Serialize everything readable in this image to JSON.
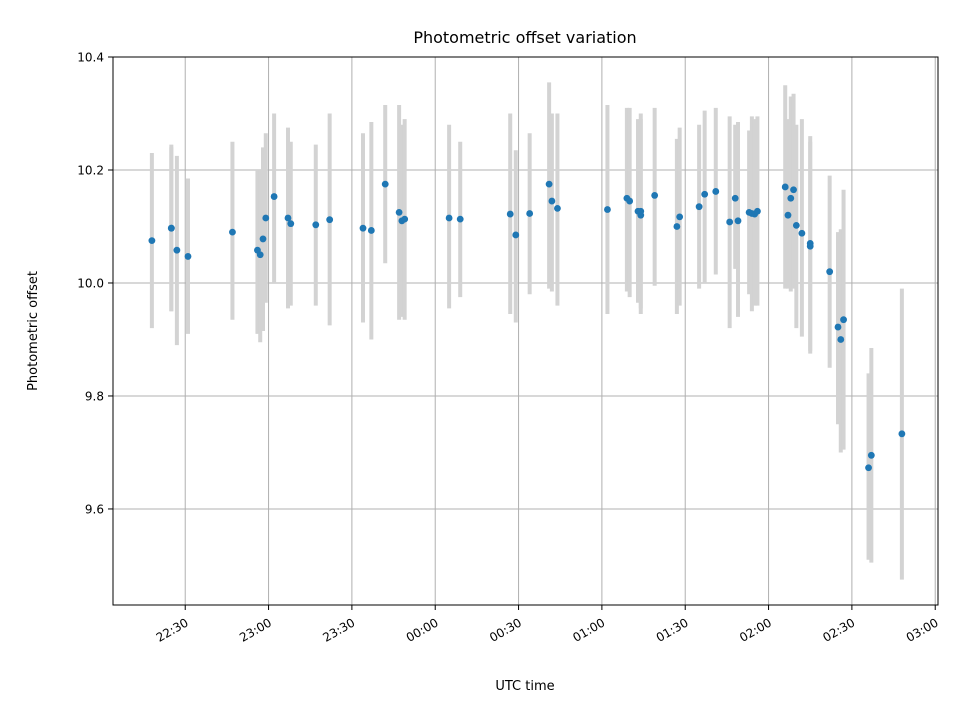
{
  "chart_data": {
    "type": "scatter",
    "title": "Photometric offset variation",
    "xlabel": "UTC time",
    "ylabel": "Photometric offset",
    "x_ticks": [
      "22:30",
      "23:00",
      "23:30",
      "00:00",
      "00:30",
      "01:00",
      "01:30",
      "02:00",
      "02:30",
      "03:00"
    ],
    "y_ticks": [
      "9.6",
      "9.8",
      "10.0",
      "10.2",
      "10.4"
    ],
    "xlim": [
      "22:04",
      "03:01"
    ],
    "ylim": [
      9.43,
      10.4
    ],
    "grid": true,
    "colors": {
      "point": "#1f77b4",
      "error_bar": "#d3d3d3",
      "grid": "#b0b0b0"
    },
    "series": [
      {
        "points": [
          {
            "x": "22:18",
            "y": 10.075,
            "ylo": 9.92,
            "yhi": 10.23
          },
          {
            "x": "22:25",
            "y": 10.097,
            "ylo": 9.95,
            "yhi": 10.245
          },
          {
            "x": "22:25",
            "y": 10.097,
            "ylo": 9.95,
            "yhi": 10.24
          },
          {
            "x": "22:27",
            "y": 10.058,
            "ylo": 9.89,
            "yhi": 10.225
          },
          {
            "x": "22:31",
            "y": 10.047,
            "ylo": 9.91,
            "yhi": 10.185
          },
          {
            "x": "22:47",
            "y": 10.09,
            "ylo": 9.935,
            "yhi": 10.25
          },
          {
            "x": "22:56",
            "y": 10.058,
            "ylo": 9.91,
            "yhi": 10.2
          },
          {
            "x": "22:57",
            "y": 10.05,
            "ylo": 9.895,
            "yhi": 10.2
          },
          {
            "x": "22:58",
            "y": 10.078,
            "ylo": 9.915,
            "yhi": 10.24
          },
          {
            "x": "22:59",
            "y": 10.115,
            "ylo": 9.965,
            "yhi": 10.265
          },
          {
            "x": "23:02",
            "y": 10.153,
            "ylo": 10.0,
            "yhi": 10.3
          },
          {
            "x": "23:07",
            "y": 10.115,
            "ylo": 9.955,
            "yhi": 10.275
          },
          {
            "x": "23:08",
            "y": 10.105,
            "ylo": 9.96,
            "yhi": 10.25
          },
          {
            "x": "23:17",
            "y": 10.103,
            "ylo": 9.96,
            "yhi": 10.245
          },
          {
            "x": "23:22",
            "y": 10.112,
            "ylo": 9.925,
            "yhi": 10.3
          },
          {
            "x": "23:34",
            "y": 10.097,
            "ylo": 9.93,
            "yhi": 10.265
          },
          {
            "x": "23:37",
            "y": 10.093,
            "ylo": 9.9,
            "yhi": 10.285
          },
          {
            "x": "23:42",
            "y": 10.175,
            "ylo": 10.035,
            "yhi": 10.315
          },
          {
            "x": "23:47",
            "y": 10.125,
            "ylo": 9.935,
            "yhi": 10.315
          },
          {
            "x": "23:48",
            "y": 10.11,
            "ylo": 9.94,
            "yhi": 10.28
          },
          {
            "x": "23:49",
            "y": 10.113,
            "ylo": 9.935,
            "yhi": 10.29
          },
          {
            "x": "00:05",
            "y": 10.115,
            "ylo": 9.955,
            "yhi": 10.28
          },
          {
            "x": "00:09",
            "y": 10.113,
            "ylo": 9.975,
            "yhi": 10.25
          },
          {
            "x": "00:27",
            "y": 10.122,
            "ylo": 9.945,
            "yhi": 10.3
          },
          {
            "x": "00:29",
            "y": 10.085,
            "ylo": 9.93,
            "yhi": 10.235
          },
          {
            "x": "00:34",
            "y": 10.123,
            "ylo": 9.98,
            "yhi": 10.265
          },
          {
            "x": "00:41",
            "y": 10.175,
            "ylo": 9.99,
            "yhi": 10.355
          },
          {
            "x": "00:42",
            "y": 10.145,
            "ylo": 9.985,
            "yhi": 10.3
          },
          {
            "x": "00:44",
            "y": 10.132,
            "ylo": 9.96,
            "yhi": 10.3
          },
          {
            "x": "01:02",
            "y": 10.13,
            "ylo": 9.945,
            "yhi": 10.315
          },
          {
            "x": "01:09",
            "y": 10.15,
            "ylo": 9.985,
            "yhi": 10.31
          },
          {
            "x": "01:10",
            "y": 10.145,
            "ylo": 9.975,
            "yhi": 10.31
          },
          {
            "x": "01:13",
            "y": 10.127,
            "ylo": 9.965,
            "yhi": 10.29
          },
          {
            "x": "01:14",
            "y": 10.12,
            "ylo": 9.945,
            "yhi": 10.29
          },
          {
            "x": "01:14",
            "y": 10.127,
            "ylo": 9.955,
            "yhi": 10.3
          },
          {
            "x": "01:19",
            "y": 10.155,
            "ylo": 9.995,
            "yhi": 10.31
          },
          {
            "x": "01:27",
            "y": 10.1,
            "ylo": 9.945,
            "yhi": 10.255
          },
          {
            "x": "01:28",
            "y": 10.117,
            "ylo": 9.96,
            "yhi": 10.275
          },
          {
            "x": "01:35",
            "y": 10.135,
            "ylo": 9.99,
            "yhi": 10.28
          },
          {
            "x": "01:37",
            "y": 10.157,
            "ylo": 10.0,
            "yhi": 10.305
          },
          {
            "x": "01:41",
            "y": 10.162,
            "ylo": 10.015,
            "yhi": 10.31
          },
          {
            "x": "01:46",
            "y": 10.108,
            "ylo": 9.92,
            "yhi": 10.295
          },
          {
            "x": "01:48",
            "y": 10.15,
            "ylo": 10.025,
            "yhi": 10.28
          },
          {
            "x": "01:49",
            "y": 10.11,
            "ylo": 9.94,
            "yhi": 10.285
          },
          {
            "x": "01:53",
            "y": 10.125,
            "ylo": 9.98,
            "yhi": 10.27
          },
          {
            "x": "01:54",
            "y": 10.123,
            "ylo": 9.95,
            "yhi": 10.295
          },
          {
            "x": "01:55",
            "y": 10.122,
            "ylo": 9.96,
            "yhi": 10.29
          },
          {
            "x": "01:56",
            "y": 10.127,
            "ylo": 9.96,
            "yhi": 10.295
          },
          {
            "x": "02:06",
            "y": 10.17,
            "ylo": 9.99,
            "yhi": 10.35
          },
          {
            "x": "02:07",
            "y": 10.12,
            "ylo": 9.99,
            "yhi": 10.29
          },
          {
            "x": "02:08",
            "y": 10.15,
            "ylo": 9.985,
            "yhi": 10.33
          },
          {
            "x": "02:09",
            "y": 10.165,
            "ylo": 9.99,
            "yhi": 10.335
          },
          {
            "x": "02:10",
            "y": 10.102,
            "ylo": 9.92,
            "yhi": 10.28
          },
          {
            "x": "02:12",
            "y": 10.088,
            "ylo": 9.905,
            "yhi": 10.29
          },
          {
            "x": "02:15",
            "y": 10.07,
            "ylo": 9.875,
            "yhi": 10.26
          },
          {
            "x": "02:15",
            "y": 10.065,
            "ylo": 9.88,
            "yhi": 10.25
          },
          {
            "x": "02:22",
            "y": 10.02,
            "ylo": 9.85,
            "yhi": 10.19
          },
          {
            "x": "02:25",
            "y": 9.922,
            "ylo": 9.75,
            "yhi": 10.09
          },
          {
            "x": "02:26",
            "y": 9.9,
            "ylo": 9.7,
            "yhi": 10.095
          },
          {
            "x": "02:27",
            "y": 9.935,
            "ylo": 9.705,
            "yhi": 10.165
          },
          {
            "x": "02:36",
            "y": 9.673,
            "ylo": 9.51,
            "yhi": 9.84
          },
          {
            "x": "02:37",
            "y": 9.695,
            "ylo": 9.505,
            "yhi": 9.885
          },
          {
            "x": "02:48",
            "y": 9.733,
            "ylo": 9.475,
            "yhi": 9.99
          }
        ]
      }
    ]
  }
}
